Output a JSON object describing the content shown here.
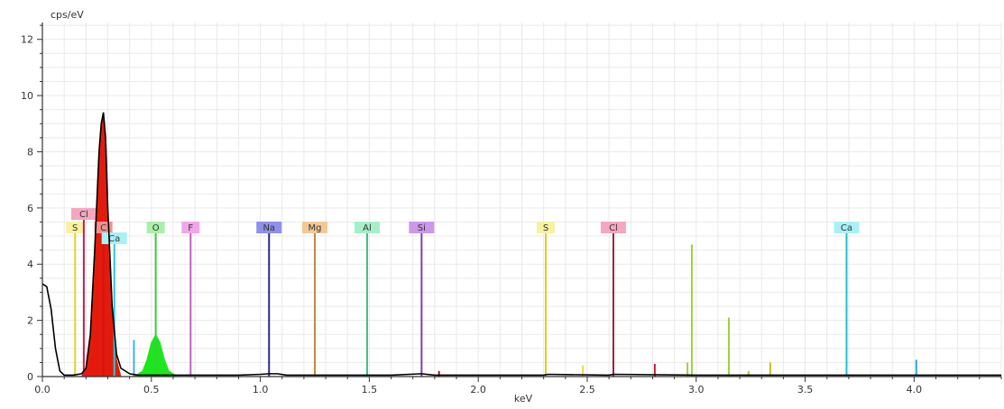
{
  "chart_data": {
    "type": "line",
    "ylabel": "cps/eV",
    "xlabel": "keV",
    "xlim": [
      0.0,
      4.4
    ],
    "ylim": [
      0,
      12.6
    ],
    "x_ticks": [
      "0.0",
      "0.5",
      "1.0",
      "1.5",
      "2.0",
      "2.5",
      "3.0",
      "3.5",
      "4.0"
    ],
    "x_tick_values": [
      0.0,
      0.5,
      1.0,
      1.5,
      2.0,
      2.5,
      3.0,
      3.5,
      4.0
    ],
    "y_ticks": [
      "0",
      "2",
      "4",
      "6",
      "8",
      "10",
      "12"
    ],
    "y_tick_values": [
      0,
      2,
      4,
      6,
      8,
      10,
      12
    ],
    "grid": true,
    "spectrum": {
      "color": "#000000",
      "x": [
        0.0,
        0.02,
        0.04,
        0.06,
        0.08,
        0.1,
        0.14,
        0.18,
        0.2,
        0.22,
        0.24,
        0.26,
        0.27,
        0.28,
        0.29,
        0.3,
        0.32,
        0.34,
        0.36,
        0.4,
        0.44,
        0.48,
        0.5,
        0.52,
        0.54,
        0.56,
        0.6,
        0.7,
        0.9,
        1.0,
        1.04,
        1.08,
        1.12,
        1.3,
        1.6,
        1.74,
        1.8,
        2.3,
        2.32,
        2.6,
        2.62,
        3.0,
        3.7,
        4.4
      ],
      "y": [
        3.3,
        3.2,
        2.4,
        1.0,
        0.2,
        0.05,
        0.05,
        0.1,
        0.3,
        1.5,
        4.5,
        8.0,
        9.0,
        9.4,
        8.5,
        6.0,
        2.5,
        0.8,
        0.3,
        0.1,
        0.05,
        0.05,
        0.05,
        0.05,
        0.05,
        0.05,
        0.05,
        0.05,
        0.05,
        0.08,
        0.1,
        0.1,
        0.05,
        0.05,
        0.05,
        0.1,
        0.05,
        0.05,
        0.08,
        0.05,
        0.08,
        0.05,
        0.05,
        0.05
      ]
    },
    "filled_peaks": [
      {
        "name": "C",
        "color": "#e31b0c",
        "x": [
          0.18,
          0.2,
          0.22,
          0.24,
          0.26,
          0.28,
          0.3,
          0.32,
          0.34,
          0.36
        ],
        "y": [
          0,
          0.3,
          1.5,
          4.5,
          8.0,
          9.4,
          6.0,
          2.5,
          0.6,
          0
        ]
      },
      {
        "name": "O",
        "color": "#1ee61e",
        "x": [
          0.42,
          0.46,
          0.48,
          0.5,
          0.52,
          0.54,
          0.56,
          0.58,
          0.62
        ],
        "y": [
          0,
          0.2,
          0.6,
          1.2,
          1.5,
          1.2,
          0.6,
          0.2,
          0
        ]
      }
    ],
    "element_markers": [
      {
        "label": "S",
        "x": 0.15,
        "height": 5.1,
        "color": "#e0d232",
        "label_bg": "#f7f1a0",
        "tier": 1
      },
      {
        "label": "Cl",
        "x": 0.19,
        "height": 5.5,
        "color": "#c02050",
        "label_bg": "#f4a7bf",
        "tier": 0
      },
      {
        "label": "C",
        "x": 0.28,
        "height": 5.1,
        "color": "#d21414",
        "label_bg": "#f48f8f",
        "tier": 1
      },
      {
        "label": "Ca",
        "x": 0.33,
        "height": 4.8,
        "color": "#28c8d8",
        "label_bg": "#aaf0f6",
        "tier": 2
      },
      {
        "label": "O",
        "x": 0.52,
        "height": 5.1,
        "color": "#3ccc3c",
        "label_bg": "#a8f0a8",
        "tier": 1
      },
      {
        "label": "F",
        "x": 0.68,
        "height": 5.1,
        "color": "#c060c0",
        "label_bg": "#f0a6e8",
        "tier": 1
      },
      {
        "label": "Na",
        "x": 1.04,
        "height": 5.1,
        "color": "#2a2a80",
        "label_bg": "#8f90e8",
        "tier": 1
      },
      {
        "label": "Mg",
        "x": 1.25,
        "height": 5.1,
        "color": "#c08a40",
        "label_bg": "#f4c896",
        "tier": 1
      },
      {
        "label": "Al",
        "x": 1.49,
        "height": 5.1,
        "color": "#40c080",
        "label_bg": "#a4f0c8",
        "tier": 1
      },
      {
        "label": "Si",
        "x": 1.74,
        "height": 5.1,
        "color": "#8040a8",
        "label_bg": "#cc98e8",
        "tier": 1
      },
      {
        "label": "S",
        "x": 2.31,
        "height": 5.1,
        "color": "#d8d020",
        "label_bg": "#f7f1a0",
        "tier": 1
      },
      {
        "label": "Cl",
        "x": 2.62,
        "height": 5.1,
        "color": "#a02040",
        "label_bg": "#f4a7bf",
        "tier": 1
      },
      {
        "label": "Ca",
        "x": 3.69,
        "height": 5.1,
        "color": "#20c0d0",
        "label_bg": "#aaf0f6",
        "tier": 1
      }
    ],
    "minor_lines": [
      {
        "x": 0.42,
        "height": 1.3,
        "color": "#40b0f0"
      },
      {
        "x": 1.82,
        "height": 0.2,
        "color": "#a02020"
      },
      {
        "x": 2.48,
        "height": 0.4,
        "color": "#e0e040"
      },
      {
        "x": 2.81,
        "height": 0.45,
        "color": "#c02040"
      },
      {
        "x": 2.96,
        "height": 0.5,
        "color": "#a0d040"
      },
      {
        "x": 2.98,
        "height": 4.7,
        "color": "#a0d040"
      },
      {
        "x": 3.15,
        "height": 2.1,
        "color": "#a0d040"
      },
      {
        "x": 3.24,
        "height": 0.2,
        "color": "#a0d040"
      },
      {
        "x": 3.34,
        "height": 0.5,
        "color": "#c0c020"
      },
      {
        "x": 4.01,
        "height": 0.6,
        "color": "#30a0e0"
      }
    ]
  }
}
